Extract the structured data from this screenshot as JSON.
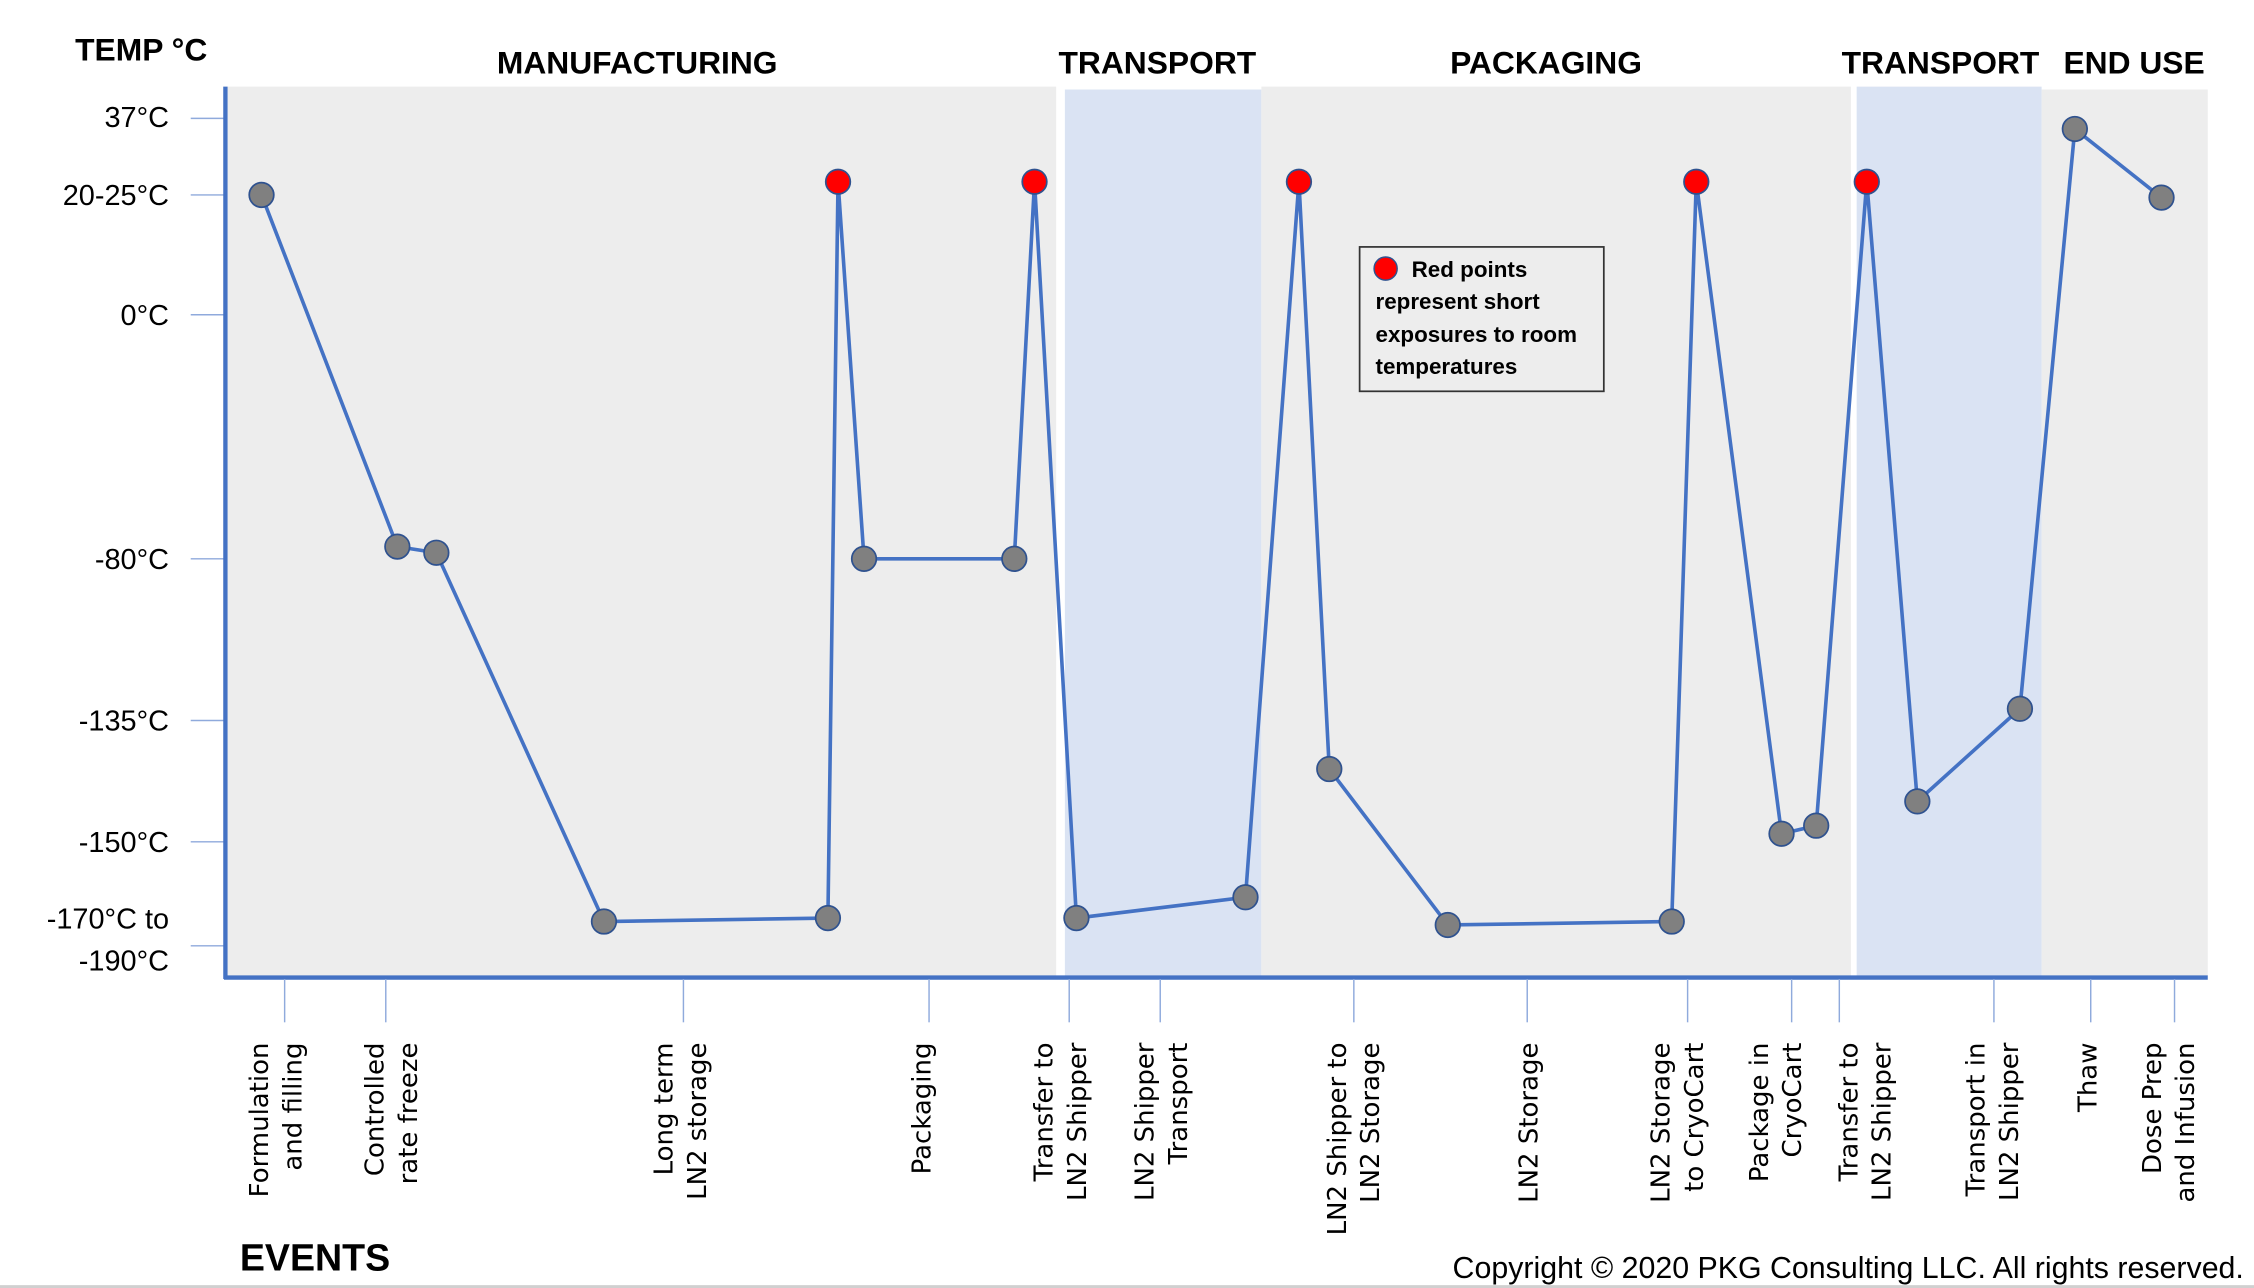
{
  "chart_data": {
    "type": "line",
    "ylabel": "TEMP °C",
    "xlabel": "EVENTS",
    "y_ticks": [
      "37°C",
      "20-25°C",
      "0°C",
      "-80°C",
      "-135°C",
      "-150°C",
      "-170°C to",
      "-190°C"
    ],
    "y_tick_values": [
      37,
      22.5,
      0,
      -80,
      -135,
      -150,
      -180
    ],
    "y_scale": "non-linear (categorical temperature bands)",
    "grid": false,
    "phases": [
      {
        "label": "MANUFACTURING",
        "color": "#ededed"
      },
      {
        "label": "TRANSPORT",
        "color": "#dae3f3"
      },
      {
        "label": "PACKAGING",
        "color": "#ededed"
      },
      {
        "label": "TRANSPORT",
        "color": "#dae3f3"
      },
      {
        "label": "END USE",
        "color": "#ededed"
      }
    ],
    "events": [
      [
        "Formulation",
        "and filling"
      ],
      [
        "Controlled",
        "rate freeze"
      ],
      [
        "Long term",
        "LN2 storage"
      ],
      [
        "Packaging"
      ],
      [
        "Transfer to",
        "LN2 Shipper"
      ],
      [
        "LN2 Shipper",
        "Transport"
      ],
      [
        "LN2 Shipper to",
        "LN2 Storage"
      ],
      [
        "LN2 Storage"
      ],
      [
        "LN2 Storage",
        "to CryoCart"
      ],
      [
        "Package in",
        "CryoCart"
      ],
      [
        "Transfer to",
        "LN2 Shipper"
      ],
      [
        "Transport in",
        "LN2 Shipper"
      ],
      [
        "Thaw"
      ],
      [
        "Dose Prep",
        "and Infusion"
      ]
    ],
    "series": [
      {
        "points": [
          {
            "temp": 22.5,
            "red": false
          },
          {
            "temp": -76,
            "red": false
          },
          {
            "temp": -78,
            "red": false
          },
          {
            "temp": -173,
            "red": false
          },
          {
            "temp": -172,
            "red": false
          },
          {
            "temp": 25,
            "red": true
          },
          {
            "temp": -80,
            "red": false
          },
          {
            "temp": -80,
            "red": false
          },
          {
            "temp": 25,
            "red": true
          },
          {
            "temp": -172,
            "red": false
          },
          {
            "temp": -166,
            "red": false
          },
          {
            "temp": 25,
            "red": true
          },
          {
            "temp": -141,
            "red": false
          },
          {
            "temp": -174,
            "red": false
          },
          {
            "temp": -173,
            "red": false
          },
          {
            "temp": 25,
            "red": true
          },
          {
            "temp": -149,
            "red": false
          },
          {
            "temp": -148,
            "red": false
          },
          {
            "temp": 25,
            "red": true
          },
          {
            "temp": -145,
            "red": false
          },
          {
            "temp": -131,
            "red": false
          },
          {
            "temp": 35,
            "red": false
          },
          {
            "temp": 22,
            "red": false
          }
        ]
      }
    ],
    "colors": {
      "line": "#4472c4",
      "point": "#808080",
      "point_red": "#ff0000",
      "axis": "#4472c4"
    },
    "annotation": [
      "Red points",
      "represent short",
      "exposures to room",
      "temperatures"
    ]
  },
  "copyright": "Copyright © 2020 PKG Consulting LLC. All rights reserved."
}
